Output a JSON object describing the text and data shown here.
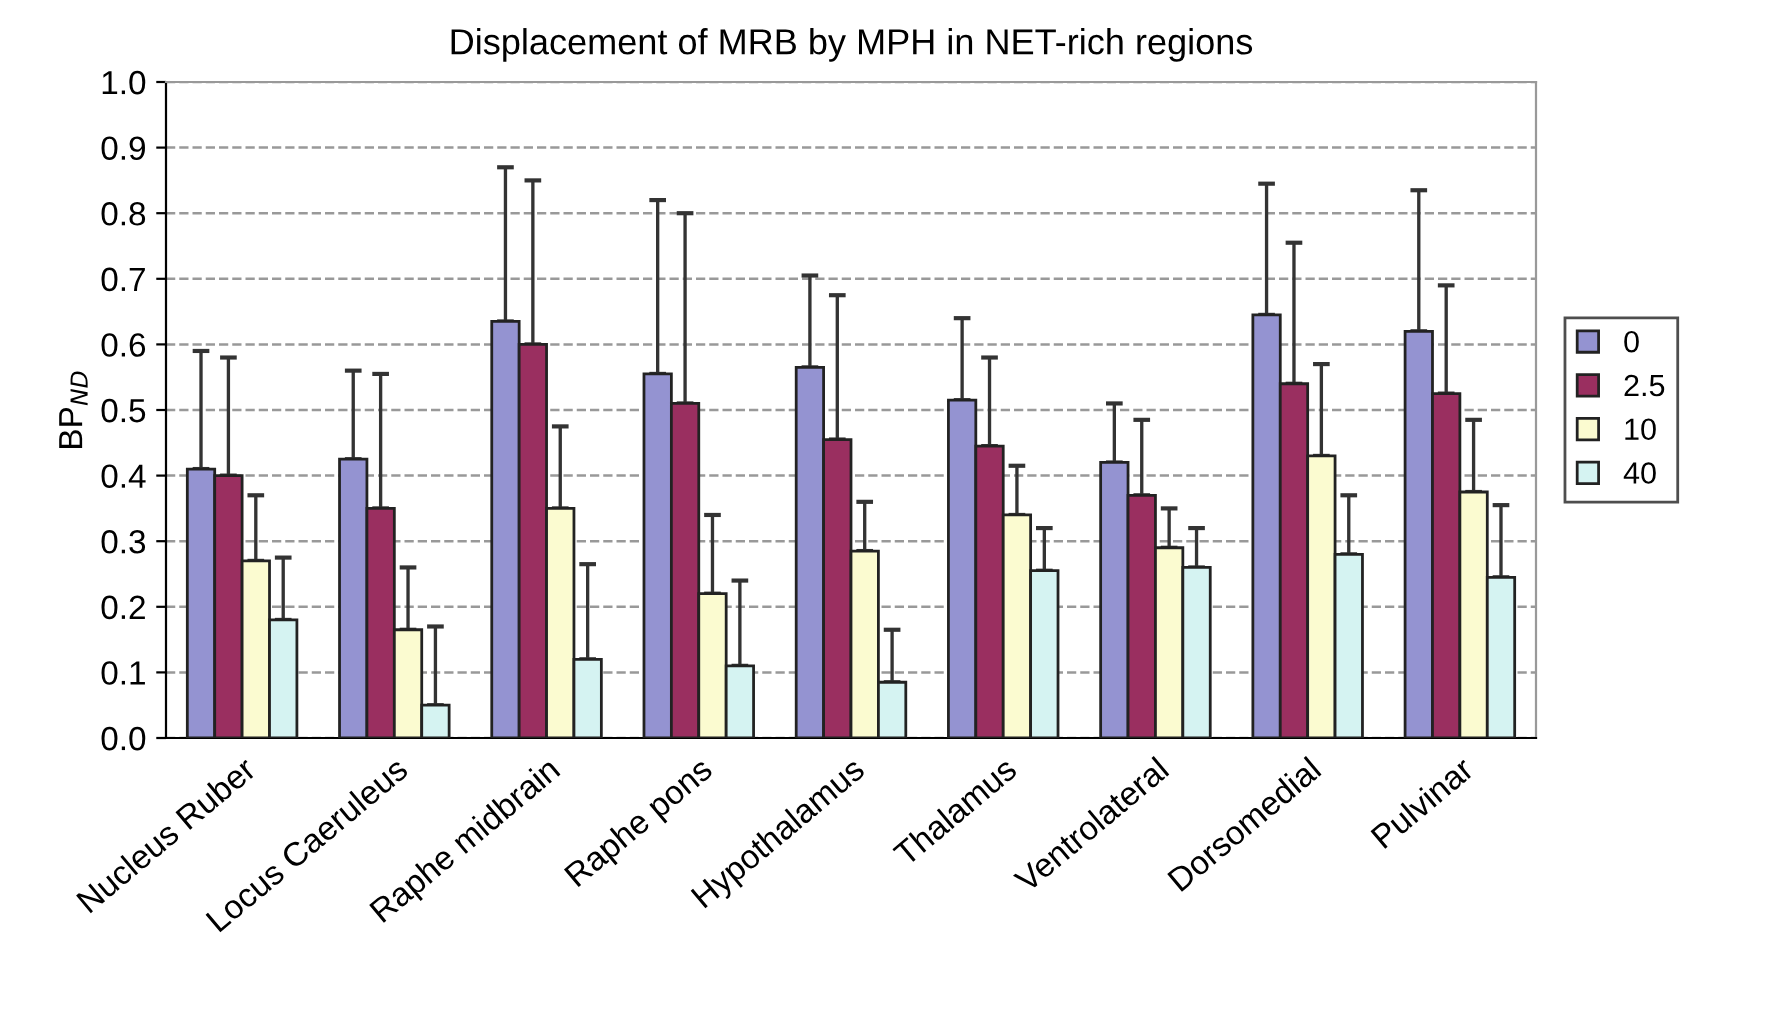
{
  "chart_data": {
    "type": "bar",
    "title": "Displacement of MRB by MPH in NET-rich regions",
    "ylabel": "BP$_{ND}$",
    "categories": [
      "Nucleus Ruber",
      "Locus Caeruleus",
      "Raphe midbrain",
      "Raphe pons",
      "Hypothalamus",
      "Thalamus",
      "Ventrolateral",
      "Dorsomedial",
      "Pulvinar"
    ],
    "series": [
      {
        "name": "0",
        "color": "#9493d1",
        "values": [
          0.41,
          0.425,
          0.635,
          0.555,
          0.565,
          0.515,
          0.42,
          0.645,
          0.62
        ],
        "errors": [
          [
            0.41,
            0.59
          ],
          [
            0.425,
            0.56
          ],
          [
            0.635,
            0.87
          ],
          [
            0.555,
            0.82
          ],
          [
            0.565,
            0.705
          ],
          [
            0.515,
            0.64
          ],
          [
            0.42,
            0.51
          ],
          [
            0.645,
            0.845
          ],
          [
            0.62,
            0.835
          ]
        ]
      },
      {
        "name": "2.5",
        "color": "#9a2f60",
        "values": [
          0.4,
          0.35,
          0.6,
          0.51,
          0.455,
          0.445,
          0.37,
          0.54,
          0.525
        ],
        "errors": [
          [
            0.4,
            0.58
          ],
          [
            0.35,
            0.555
          ],
          [
            0.6,
            0.85
          ],
          [
            0.51,
            0.8
          ],
          [
            0.455,
            0.675
          ],
          [
            0.445,
            0.58
          ],
          [
            0.37,
            0.485
          ],
          [
            0.54,
            0.755
          ],
          [
            0.525,
            0.69
          ]
        ]
      },
      {
        "name": "10",
        "color": "#fbfbd0",
        "values": [
          0.27,
          0.165,
          0.35,
          0.22,
          0.285,
          0.34,
          0.29,
          0.43,
          0.375
        ],
        "errors": [
          [
            0.27,
            0.37
          ],
          [
            0.165,
            0.26
          ],
          [
            0.35,
            0.475
          ],
          [
            0.22,
            0.34
          ],
          [
            0.285,
            0.36
          ],
          [
            0.34,
            0.415
          ],
          [
            0.29,
            0.35
          ],
          [
            0.43,
            0.57
          ],
          [
            0.375,
            0.485
          ]
        ]
      },
      {
        "name": "40",
        "color": "#d5f3f2",
        "values": [
          0.18,
          0.05,
          0.12,
          0.11,
          0.085,
          0.255,
          0.26,
          0.28,
          0.245
        ],
        "errors": [
          [
            0.18,
            0.275
          ],
          [
            0.05,
            0.17
          ],
          [
            0.12,
            0.265
          ],
          [
            0.11,
            0.24
          ],
          [
            0.085,
            0.165
          ],
          [
            0.255,
            0.32
          ],
          [
            0.26,
            0.32
          ],
          [
            0.28,
            0.37
          ],
          [
            0.245,
            0.355
          ]
        ]
      }
    ],
    "ylim": [
      0,
      1.0
    ],
    "yticks": [
      {
        "value": 0,
        "label": "0.0"
      },
      0.1,
      0.2,
      0.3,
      0.4,
      0.5,
      0.6,
      0.7,
      0.8,
      0.9,
      {
        "value": 1.0,
        "label": "1.0"
      }
    ],
    "grid": "y",
    "legend": "right"
  }
}
